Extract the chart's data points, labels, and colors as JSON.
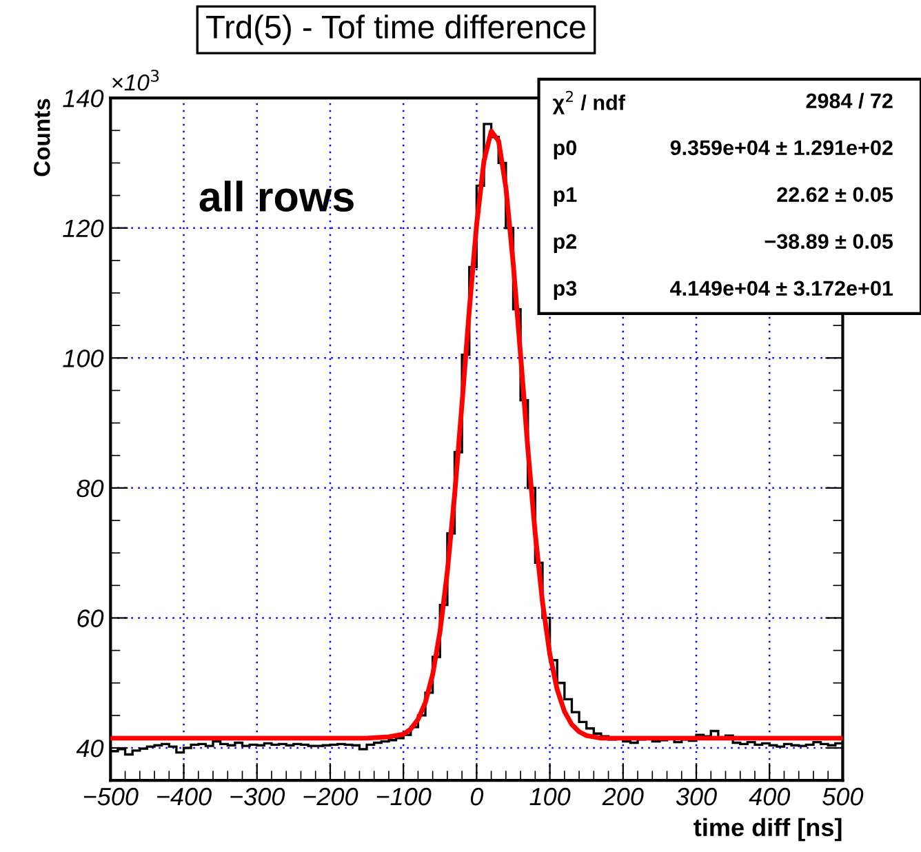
{
  "chart_data": {
    "type": "histogram",
    "title": "Trd(5) - Tof time difference",
    "xlabel": "time diff [ns]",
    "ylabel": "Counts",
    "bins": [
      -500,
      -490,
      -480,
      -470,
      -460,
      -450,
      -440,
      -430,
      -420,
      -410,
      -400,
      -390,
      -380,
      -370,
      -360,
      -350,
      -340,
      -330,
      -320,
      -310,
      -300,
      -290,
      -280,
      -270,
      -260,
      -250,
      -240,
      -230,
      -220,
      -210,
      -200,
      -190,
      -180,
      -170,
      -160,
      -150,
      -140,
      -130,
      -120,
      -110,
      -100,
      -90,
      -80,
      -70,
      -60,
      -50,
      -40,
      -30,
      -20,
      -10,
      0,
      10,
      20,
      30,
      40,
      50,
      60,
      70,
      80,
      90,
      100,
      110,
      120,
      130,
      140,
      150,
      160,
      170,
      180,
      190,
      200,
      210,
      220,
      230,
      240,
      250,
      260,
      270,
      280,
      290,
      300,
      310,
      320,
      330,
      340,
      350,
      360,
      370,
      380,
      390,
      400,
      410,
      420,
      430,
      440,
      450,
      460,
      470,
      480,
      490,
      500
    ],
    "series": [
      {
        "color": "#000000",
        "values": [
          39.5,
          39.8,
          39.0,
          39.6,
          39.9,
          40.2,
          40.4,
          40.6,
          40.2,
          39.3,
          40.0,
          40.5,
          40.6,
          40.3,
          41.0,
          40.6,
          40.4,
          40.8,
          40.3,
          40.5,
          40.4,
          40.7,
          40.5,
          40.6,
          40.4,
          40.6,
          40.5,
          40.3,
          40.3,
          40.4,
          40.5,
          40.6,
          40.5,
          40.4,
          39.8,
          40.5,
          40.8,
          41.0,
          41.2,
          41.5,
          42.0,
          43.2,
          45.0,
          48.5,
          54.0,
          62.0,
          73.0,
          85.5,
          100.5,
          114.0,
          126.5,
          136.0,
          134.0,
          130.0,
          120.0,
          107.5,
          93.5,
          80.0,
          68.5,
          60.0,
          53.5,
          50.0,
          47.5,
          45.5,
          44.0,
          43.0,
          42.2,
          41.8,
          41.3,
          41.5,
          41.0,
          40.8,
          41.3,
          41.6,
          41.0,
          41.2,
          41.4,
          40.9,
          41.3,
          41.1,
          42.0,
          41.8,
          42.6,
          41.4,
          41.9,
          40.8,
          40.6,
          40.9,
          40.5,
          40.7,
          40.4,
          40.2,
          40.6,
          40.4,
          40.3,
          40.5,
          40.9,
          40.6,
          40.4,
          40.7
        ]
      },
      {
        "type": "line",
        "color": "#ff0000",
        "x": [
          -500,
          -150,
          -120,
          -100,
          -90,
          -80,
          -70,
          -60,
          -50,
          -40,
          -30,
          -20,
          -10,
          0,
          10,
          20,
          30,
          40,
          50,
          60,
          70,
          80,
          90,
          100,
          110,
          120,
          130,
          140,
          150,
          170,
          500
        ],
        "values": [
          41.5,
          41.5,
          41.7,
          42.1,
          42.9,
          44.4,
          47.0,
          51.3,
          57.9,
          67.1,
          79.0,
          92.9,
          107.4,
          120.5,
          130.3,
          134.9,
          133.4,
          126.2,
          114.5,
          100.5,
          86.0,
          73.0,
          62.4,
          54.4,
          49.0,
          45.6,
          43.6,
          42.5,
          41.9,
          41.5,
          41.5
        ]
      }
    ],
    "xlim": [
      -500,
      500
    ],
    "xticks": [
      {
        "value": -500,
        "label": "−500"
      },
      {
        "value": -400,
        "label": "−400"
      },
      {
        "value": -300,
        "label": "−300"
      },
      {
        "value": -200,
        "label": "−200"
      },
      {
        "value": -100,
        "label": "−100"
      },
      0,
      100,
      200,
      300,
      400,
      500
    ],
    "ylim": [
      35,
      140
    ],
    "yticks": [
      40,
      60,
      80,
      100,
      120,
      140
    ],
    "grid": true,
    "annotations": [
      "all rows",
      "×10$^{3}$",
      "χ$^{2}$ / ndf",
      "2984 / 72",
      "p0",
      "9.359e+04 ± 1.291e+02",
      "p1",
      "22.62 ± 0.05",
      "p2",
      "−38.89 ± 0.05",
      "p3",
      "4.149e+04 ± 3.172e+01"
    ]
  }
}
